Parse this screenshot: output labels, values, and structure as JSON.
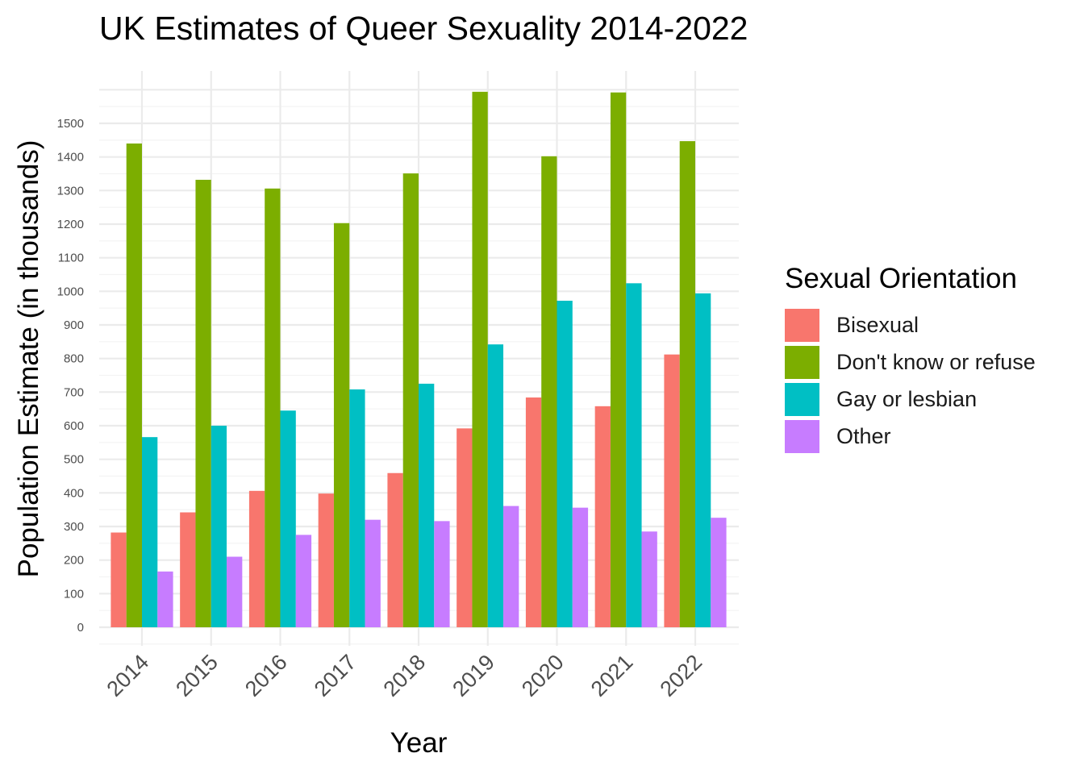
{
  "chart_data": {
    "type": "bar",
    "title": "UK Estimates of Queer Sexuality 2014-2022",
    "xlabel": "Year",
    "ylabel": "Population Estimate (in thousands)",
    "categories": [
      "2014",
      "2015",
      "2016",
      "2017",
      "2018",
      "2019",
      "2020",
      "2021",
      "2022"
    ],
    "series": [
      {
        "name": "Bisexual",
        "color": "#F8766D",
        "values": [
          282,
          342,
          406,
          398,
          459,
          592,
          684,
          658,
          812
        ]
      },
      {
        "name": "Don't know or refuse",
        "color": "#7CAE00",
        "values": [
          1440,
          1332,
          1306,
          1203,
          1351,
          1594,
          1402,
          1592,
          1447
        ]
      },
      {
        "name": "Gay or lesbian",
        "color": "#00BFC4",
        "values": [
          566,
          600,
          645,
          708,
          725,
          842,
          972,
          1024,
          994
        ]
      },
      {
        "name": "Other",
        "color": "#C77CFF",
        "values": [
          166,
          210,
          275,
          320,
          316,
          361,
          356,
          285,
          326
        ]
      }
    ],
    "yticks": [
      "0",
      "100",
      "200",
      "300",
      "400",
      "500",
      "600",
      "700",
      "800",
      "900",
      "1000",
      "1100",
      "1200",
      "1300",
      "1400",
      "1500"
    ],
    "ylim": [
      -50,
      1600
    ],
    "grid": true,
    "legend_title": "Sexual Orientation",
    "legend_position": "right"
  }
}
